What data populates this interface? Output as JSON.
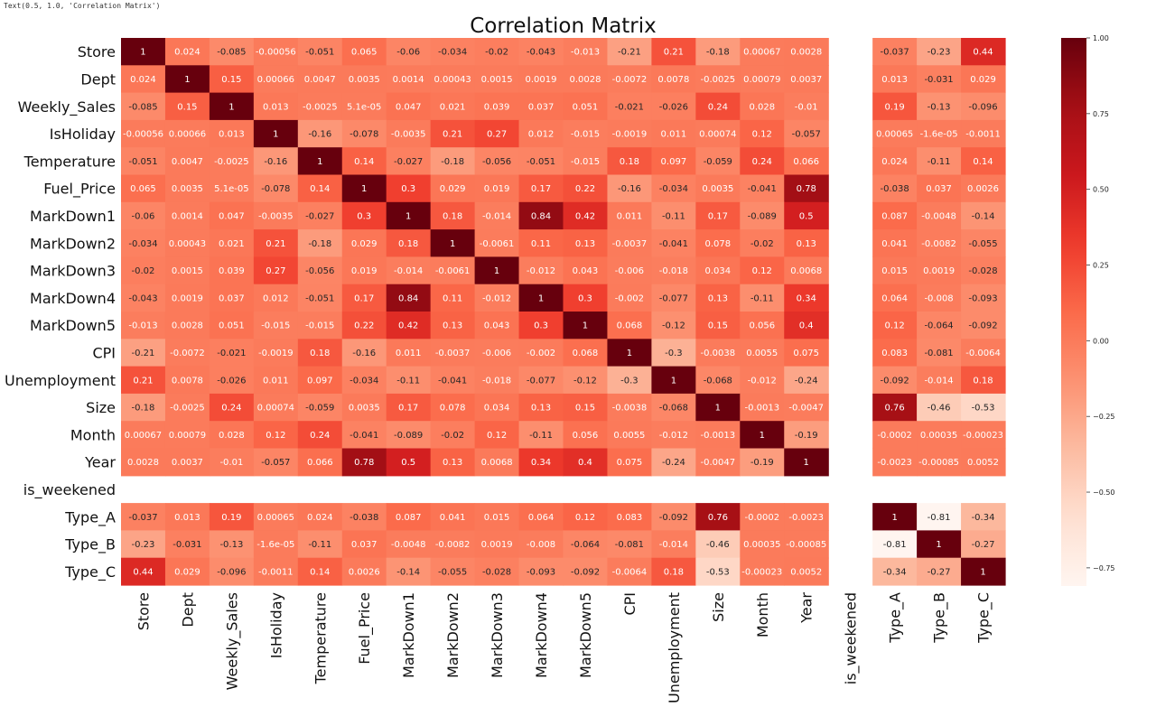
{
  "notebook_output": "Text(0.5, 1.0, 'Correlation Matrix')",
  "chart_data": {
    "type": "heatmap",
    "title": "Correlation Matrix",
    "colormap": "Reds",
    "annotated": true,
    "vmin": -0.81,
    "vmax": 1.0,
    "colorbar_ticks": [
      1.0,
      0.75,
      0.5,
      0.25,
      0.0,
      -0.25,
      -0.5,
      -0.75
    ],
    "colorbar_tick_labels": [
      "1.00",
      "0.75",
      "0.50",
      "0.25",
      "0.00",
      "−0.25",
      "−0.50",
      "−0.75"
    ],
    "labels": [
      "Store",
      "Dept",
      "Weekly_Sales",
      "IsHoliday",
      "Temperature",
      "Fuel_Price",
      "MarkDown1",
      "MarkDown2",
      "MarkDown3",
      "MarkDown4",
      "MarkDown5",
      "CPI",
      "Unemployment",
      "Size",
      "Month",
      "Year",
      "is_weekened",
      "Type_A",
      "Type_B",
      "Type_C"
    ],
    "annotations": [
      [
        "1",
        "0.024",
        "-0.085",
        "-0.00056",
        "-0.051",
        "0.065",
        "-0.06",
        "-0.034",
        "-0.02",
        "-0.043",
        "-0.013",
        "-0.21",
        "0.21",
        "-0.18",
        "0.00067",
        "0.0028",
        "",
        "-0.037",
        "-0.23",
        "0.44"
      ],
      [
        "0.024",
        "1",
        "0.15",
        "0.00066",
        "0.0047",
        "0.0035",
        "0.0014",
        "0.00043",
        "0.0015",
        "0.0019",
        "0.0028",
        "-0.0072",
        "0.0078",
        "-0.0025",
        "0.00079",
        "0.0037",
        "",
        "0.013",
        "-0.031",
        "0.029"
      ],
      [
        "-0.085",
        "0.15",
        "1",
        "0.013",
        "-0.0025",
        "5.1e-05",
        "0.047",
        "0.021",
        "0.039",
        "0.037",
        "0.051",
        "-0.021",
        "-0.026",
        "0.24",
        "0.028",
        "-0.01",
        "",
        "0.19",
        "-0.13",
        "-0.096"
      ],
      [
        "-0.00056",
        "0.00066",
        "0.013",
        "1",
        "-0.16",
        "-0.078",
        "-0.0035",
        "0.21",
        "0.27",
        "0.012",
        "-0.015",
        "-0.0019",
        "0.011",
        "0.00074",
        "0.12",
        "-0.057",
        "",
        "0.00065",
        "-1.6e-05",
        "-0.0011"
      ],
      [
        "-0.051",
        "0.0047",
        "-0.0025",
        "-0.16",
        "1",
        "0.14",
        "-0.027",
        "-0.18",
        "-0.056",
        "-0.051",
        "-0.015",
        "0.18",
        "0.097",
        "-0.059",
        "0.24",
        "0.066",
        "",
        "0.024",
        "-0.11",
        "0.14"
      ],
      [
        "0.065",
        "0.0035",
        "5.1e-05",
        "-0.078",
        "0.14",
        "1",
        "0.3",
        "0.029",
        "0.019",
        "0.17",
        "0.22",
        "-0.16",
        "-0.034",
        "0.0035",
        "-0.041",
        "0.78",
        "",
        "-0.038",
        "0.037",
        "0.0026"
      ],
      [
        "-0.06",
        "0.0014",
        "0.047",
        "-0.0035",
        "-0.027",
        "0.3",
        "1",
        "0.18",
        "-0.014",
        "0.84",
        "0.42",
        "0.011",
        "-0.11",
        "0.17",
        "-0.089",
        "0.5",
        "",
        "0.087",
        "-0.0048",
        "-0.14"
      ],
      [
        "-0.034",
        "0.00043",
        "0.021",
        "0.21",
        "-0.18",
        "0.029",
        "0.18",
        "1",
        "-0.0061",
        "0.11",
        "0.13",
        "-0.0037",
        "-0.041",
        "0.078",
        "-0.02",
        "0.13",
        "",
        "0.041",
        "-0.0082",
        "-0.055"
      ],
      [
        "-0.02",
        "0.0015",
        "0.039",
        "0.27",
        "-0.056",
        "0.019",
        "-0.014",
        "-0.0061",
        "1",
        "-0.012",
        "0.043",
        "-0.006",
        "-0.018",
        "0.034",
        "0.12",
        "0.0068",
        "",
        "0.015",
        "0.0019",
        "-0.028"
      ],
      [
        "-0.043",
        "0.0019",
        "0.037",
        "0.012",
        "-0.051",
        "0.17",
        "0.84",
        "0.11",
        "-0.012",
        "1",
        "0.3",
        "-0.002",
        "-0.077",
        "0.13",
        "-0.11",
        "0.34",
        "",
        "0.064",
        "-0.008",
        "-0.093"
      ],
      [
        "-0.013",
        "0.0028",
        "0.051",
        "-0.015",
        "-0.015",
        "0.22",
        "0.42",
        "0.13",
        "0.043",
        "0.3",
        "1",
        "0.068",
        "-0.12",
        "0.15",
        "0.056",
        "0.4",
        "",
        "0.12",
        "-0.064",
        "-0.092"
      ],
      [
        "-0.21",
        "-0.0072",
        "-0.021",
        "-0.0019",
        "0.18",
        "-0.16",
        "0.011",
        "-0.0037",
        "-0.006",
        "-0.002",
        "0.068",
        "1",
        "-0.3",
        "-0.0038",
        "0.0055",
        "0.075",
        "",
        "0.083",
        "-0.081",
        "-0.0064"
      ],
      [
        "0.21",
        "0.0078",
        "-0.026",
        "0.011",
        "0.097",
        "-0.034",
        "-0.11",
        "-0.041",
        "-0.018",
        "-0.077",
        "-0.12",
        "-0.3",
        "1",
        "-0.068",
        "-0.012",
        "-0.24",
        "",
        "-0.092",
        "-0.014",
        "0.18"
      ],
      [
        "-0.18",
        "-0.0025",
        "0.24",
        "0.00074",
        "-0.059",
        "0.0035",
        "0.17",
        "0.078",
        "0.034",
        "0.13",
        "0.15",
        "-0.0038",
        "-0.068",
        "1",
        "-0.0013",
        "-0.0047",
        "",
        "0.76",
        "-0.46",
        "-0.53"
      ],
      [
        "0.00067",
        "0.00079",
        "0.028",
        "0.12",
        "0.24",
        "-0.041",
        "-0.089",
        "-0.02",
        "0.12",
        "-0.11",
        "0.056",
        "0.0055",
        "-0.012",
        "-0.0013",
        "1",
        "-0.19",
        "",
        "-0.0002",
        "0.00035",
        "-0.00023"
      ],
      [
        "0.0028",
        "0.0037",
        "-0.01",
        "-0.057",
        "0.066",
        "0.78",
        "0.5",
        "0.13",
        "0.0068",
        "0.34",
        "0.4",
        "0.075",
        "-0.24",
        "-0.0047",
        "-0.19",
        "1",
        "",
        "-0.0023",
        "-0.00085",
        "0.0052"
      ],
      [
        "",
        "",
        "",
        "",
        "",
        "",
        "",
        "",
        "",
        "",
        "",
        "",
        "",
        "",
        "",
        "",
        "",
        "",
        "",
        ""
      ],
      [
        "-0.037",
        "0.013",
        "0.19",
        "0.00065",
        "0.024",
        "-0.038",
        "0.087",
        "0.041",
        "0.015",
        "0.064",
        "0.12",
        "0.083",
        "-0.092",
        "0.76",
        "-0.0002",
        "-0.0023",
        "",
        "1",
        "-0.81",
        "-0.34"
      ],
      [
        "-0.23",
        "-0.031",
        "-0.13",
        "-1.6e-05",
        "-0.11",
        "0.037",
        "-0.0048",
        "-0.0082",
        "0.0019",
        "-0.008",
        "-0.064",
        "-0.081",
        "-0.014",
        "-0.46",
        "0.00035",
        "-0.00085",
        "",
        "-0.81",
        "1",
        "-0.27"
      ],
      [
        "0.44",
        "0.029",
        "-0.096",
        "-0.0011",
        "0.14",
        "0.0026",
        "-0.14",
        "-0.055",
        "-0.028",
        "-0.093",
        "-0.092",
        "-0.0064",
        "0.18",
        "-0.53",
        "-0.00023",
        "0.0052",
        "",
        "-0.34",
        "-0.27",
        "1"
      ]
    ]
  }
}
